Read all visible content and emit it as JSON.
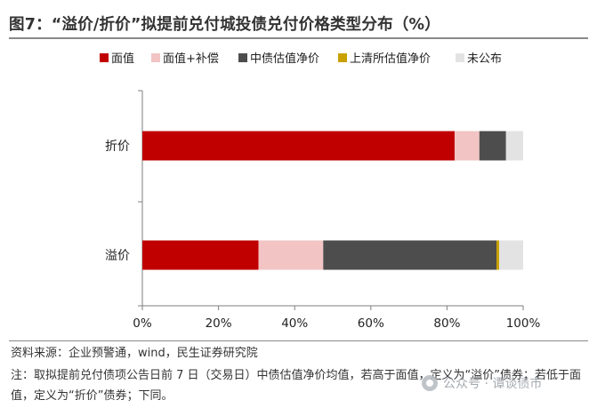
{
  "figure": {
    "title": "图7：“溢价/折价”拟提前兑付城投债兑付价格类型分布（%）"
  },
  "chart_data": {
    "type": "bar",
    "orientation": "horizontal",
    "stacked": true,
    "categories": [
      "折价",
      "溢价"
    ],
    "series": [
      {
        "name": "面值",
        "color": "#c00000",
        "values": [
          82,
          30.5
        ]
      },
      {
        "name": "面值+补偿",
        "color": "#f2c4c4",
        "values": [
          6.5,
          17
        ]
      },
      {
        "name": "中债估值净价",
        "color": "#4d4d4d",
        "values": [
          7,
          45.5
        ]
      },
      {
        "name": "上清所估值净价",
        "color": "#c9a100",
        "values": [
          0,
          0.7
        ]
      },
      {
        "name": "未公布",
        "color": "#e3e3e3",
        "values": [
          4.5,
          6.3
        ]
      }
    ],
    "xlim": [
      0,
      100
    ],
    "xticks": [
      "0%",
      "20%",
      "40%",
      "60%",
      "80%",
      "100%"
    ],
    "legend": "top",
    "grid": false
  },
  "footer": {
    "source": "资料来源：企业预警通，wind，民生证券研究院",
    "note": "注：取拟提前兑付债项公告日前 7 日（交易日）中债估值净价均值，若高于面值，定义为“溢价”债券；若低于面值，定义为“折价”债券；下同。",
    "watermark": "公众号 · 谭谈债市"
  }
}
